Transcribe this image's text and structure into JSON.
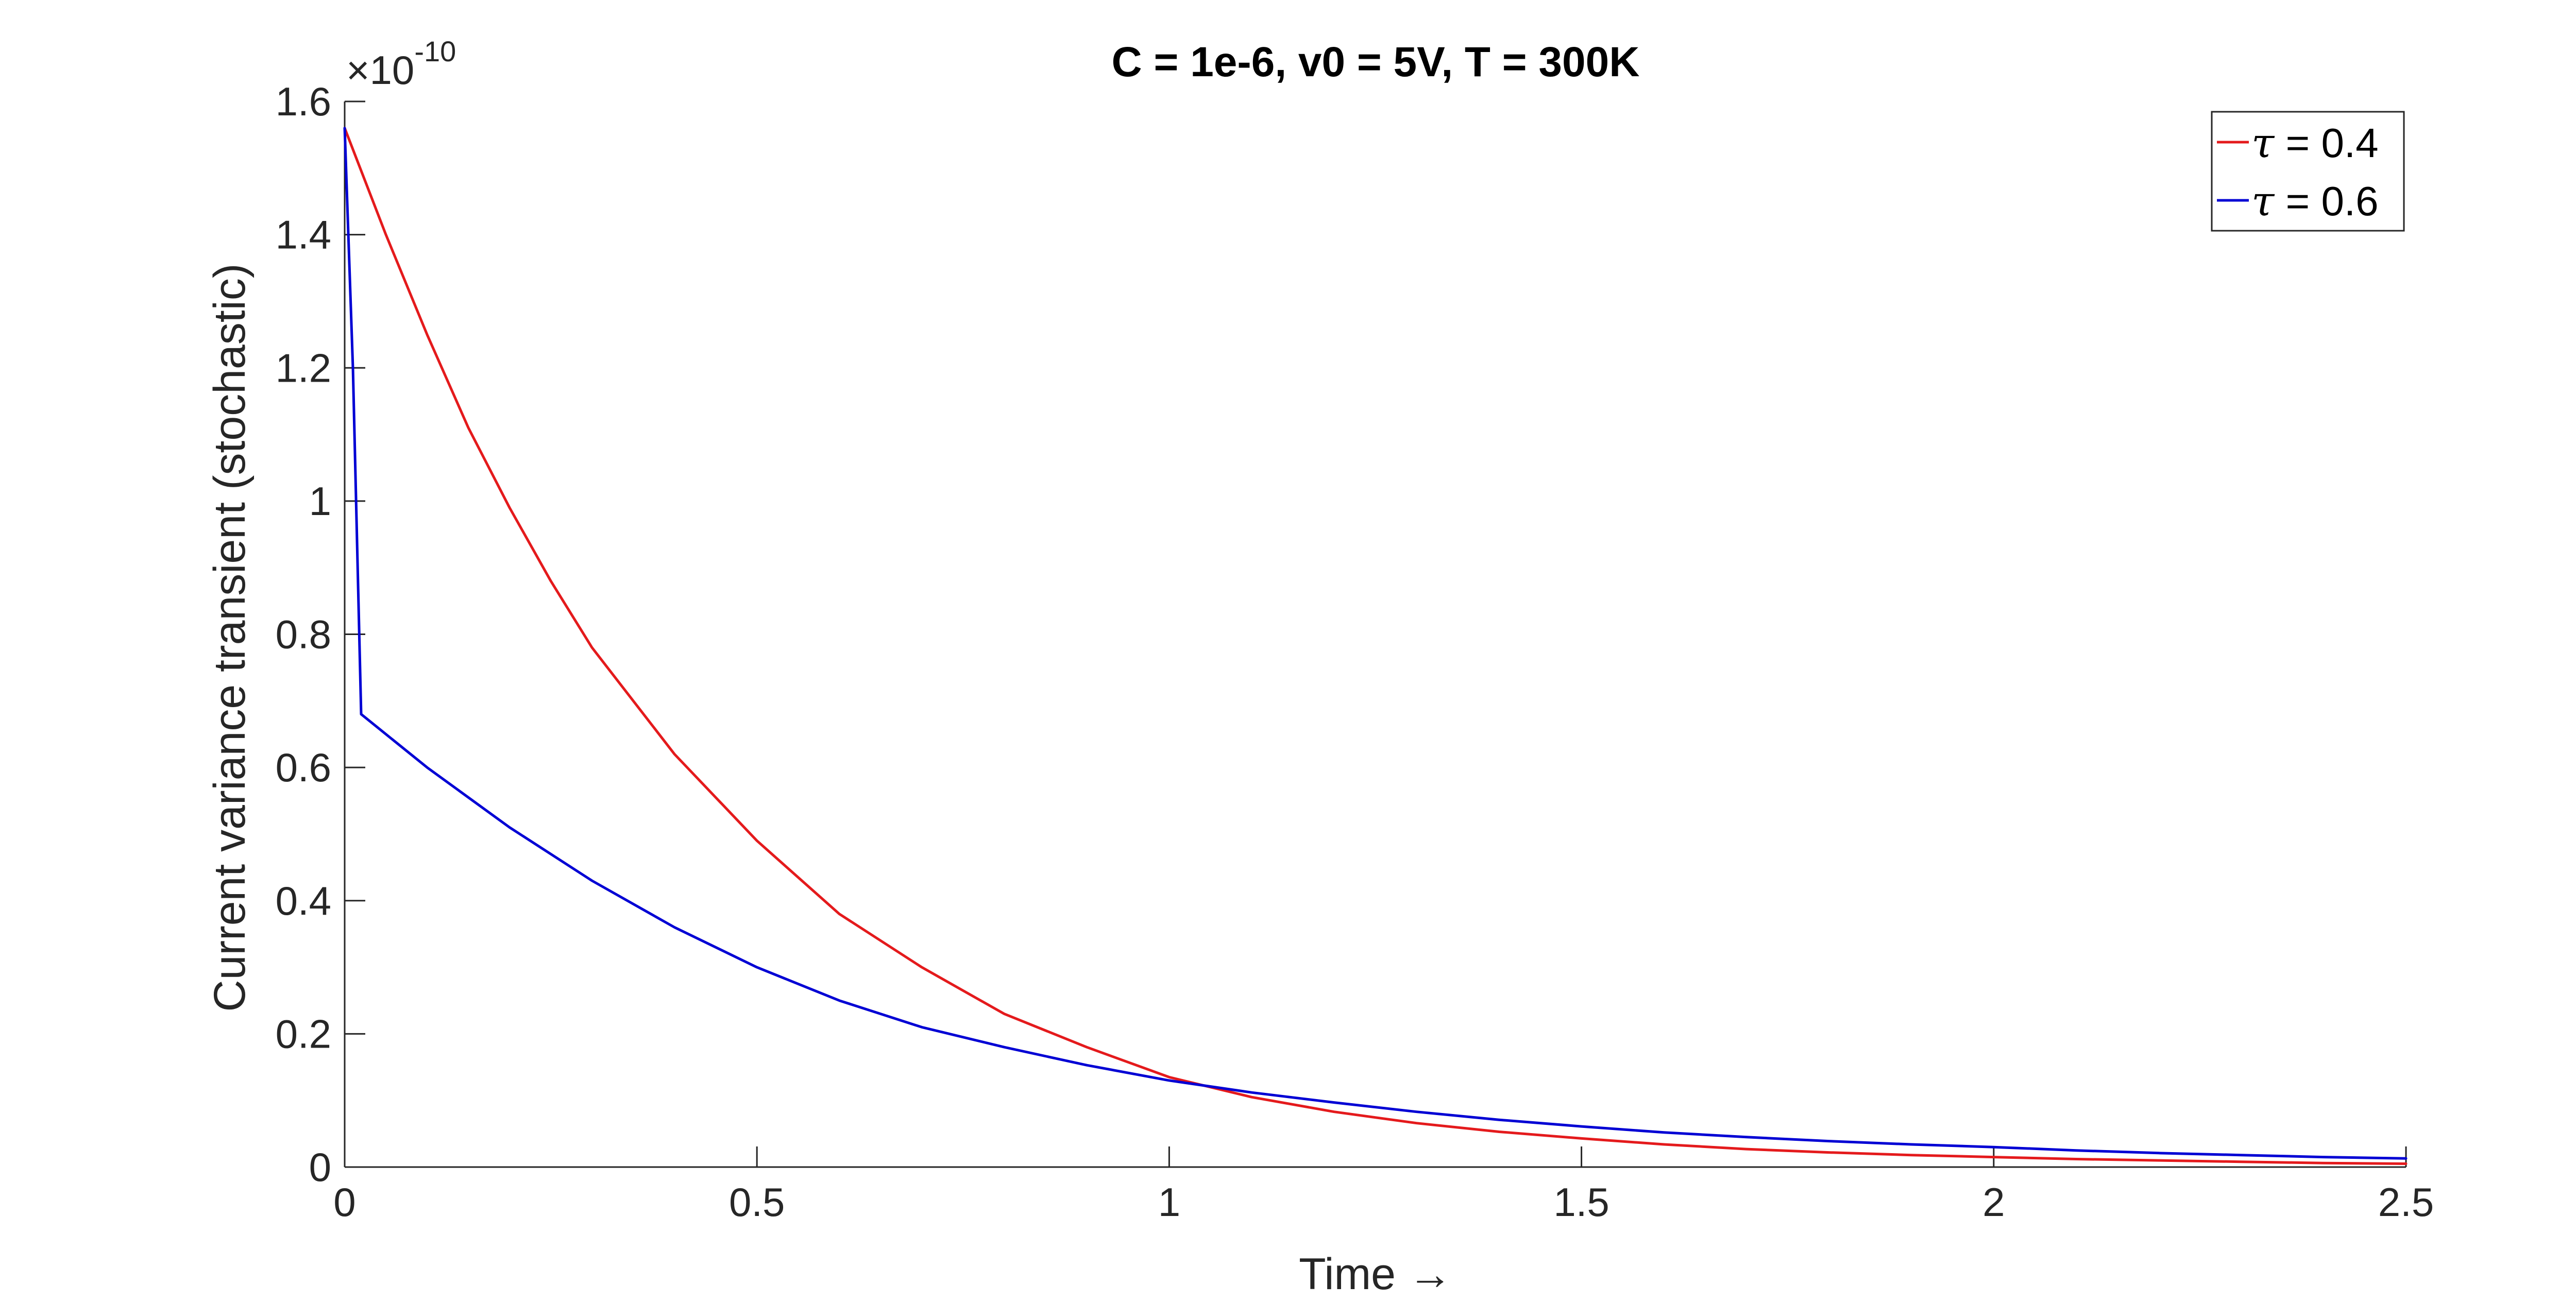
{
  "chart_data": {
    "type": "line",
    "title": "C = 1e-6, v0 = 5V, T = 300K",
    "xlabel": "Time →",
    "ylabel": "Current variance transient (stochastic)",
    "y_exponent": "-10",
    "xlim": [
      0,
      2.5
    ],
    "ylim": [
      0,
      1.6
    ],
    "xticks": [
      "0",
      "0.5",
      "1",
      "1.5",
      "2",
      "2.5"
    ],
    "yticks": [
      "0",
      "0.2",
      "0.4",
      "0.6",
      "0.8",
      "1",
      "1.2",
      "1.4",
      "1.6"
    ],
    "grid": false,
    "legend_position": "top-right",
    "series": [
      {
        "name_symbol": "τ",
        "name_value": " = 0.4",
        "color": "#e41a1c",
        "x": [
          0,
          0.05,
          0.1,
          0.15,
          0.2,
          0.25,
          0.3,
          0.4,
          0.5,
          0.6,
          0.7,
          0.8,
          0.9,
          1.0,
          1.1,
          1.2,
          1.3,
          1.4,
          1.5,
          1.6,
          1.7,
          1.8,
          1.9,
          2.0,
          2.1,
          2.2,
          2.3,
          2.4,
          2.5
        ],
        "y": [
          1.56,
          1.4,
          1.25,
          1.11,
          0.99,
          0.88,
          0.78,
          0.62,
          0.49,
          0.38,
          0.3,
          0.23,
          0.18,
          0.135,
          0.105,
          0.083,
          0.066,
          0.053,
          0.043,
          0.034,
          0.027,
          0.022,
          0.018,
          0.015,
          0.012,
          0.01,
          0.008,
          0.006,
          0.005
        ]
      },
      {
        "name_symbol": "τ",
        "name_value": " = 0.6",
        "color": "#0000d4",
        "x": [
          0,
          0.01,
          0.02,
          0.1,
          0.2,
          0.3,
          0.4,
          0.5,
          0.6,
          0.7,
          0.8,
          0.9,
          1.0,
          1.1,
          1.2,
          1.3,
          1.4,
          1.5,
          1.6,
          1.7,
          1.8,
          1.9,
          2.0,
          2.1,
          2.2,
          2.3,
          2.4,
          2.5
        ],
        "y": [
          1.56,
          1.2,
          0.68,
          0.6,
          0.51,
          0.43,
          0.36,
          0.3,
          0.25,
          0.21,
          0.18,
          0.153,
          0.13,
          0.112,
          0.097,
          0.083,
          0.071,
          0.061,
          0.052,
          0.045,
          0.039,
          0.034,
          0.03,
          0.025,
          0.021,
          0.018,
          0.015,
          0.013
        ]
      }
    ]
  }
}
